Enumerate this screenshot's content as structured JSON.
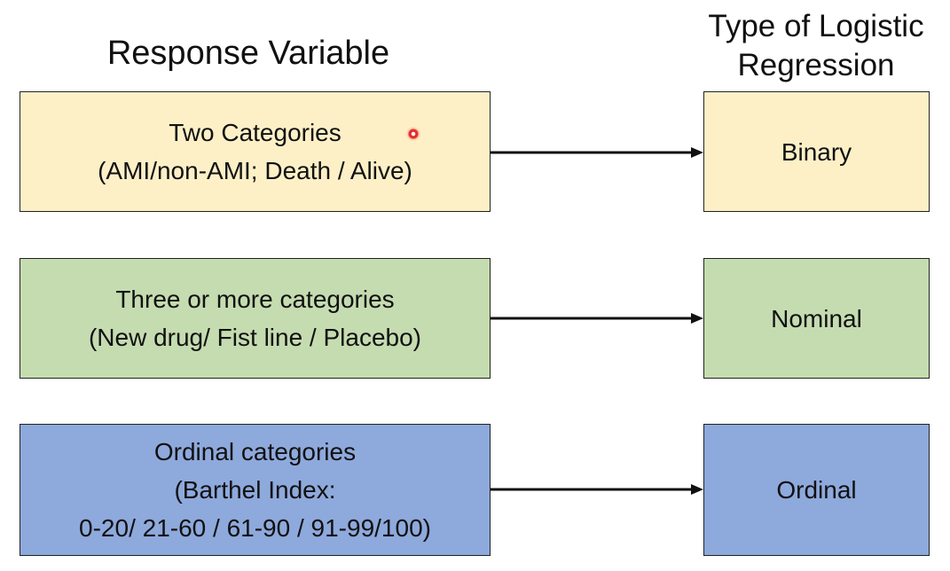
{
  "headings": {
    "left": "Response Variable",
    "right_line1": "Type of Logistic",
    "right_line2": "Regression"
  },
  "rows": [
    {
      "left_lines": [
        "Two Categories",
        "(AMI/non-AMI; Death / Alive)"
      ],
      "right": "Binary",
      "color": "#fdf0c7"
    },
    {
      "left_lines": [
        "Three or more categories",
        "(New drug/ Fist line / Placebo)"
      ],
      "right": "Nominal",
      "color": "#c5dcb0"
    },
    {
      "left_lines": [
        "Ordinal categories",
        "(Barthel Index:",
        "0-20/ 21-60 / 61-90 / 91-99/100)"
      ],
      "right": "Ordinal",
      "color": "#8ea9dc"
    }
  ],
  "colors": {
    "arrow": "#111111",
    "border": "#222222",
    "cursor": "#e0302a"
  },
  "icons": {
    "arrow": "arrow-right-icon",
    "cursor": "pointer-dot-icon"
  }
}
